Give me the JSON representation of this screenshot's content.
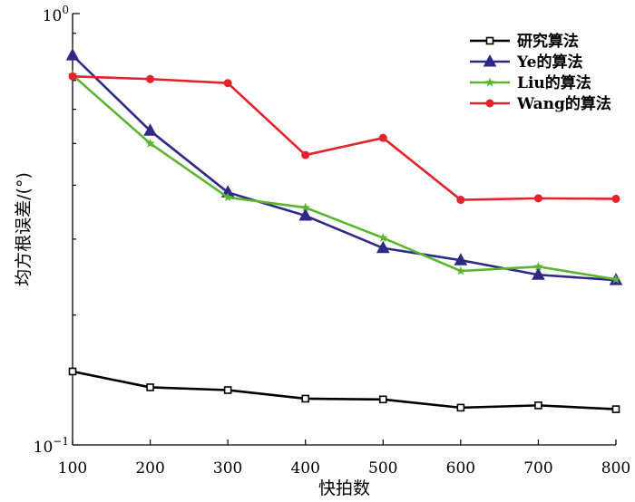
{
  "chart_data": {
    "type": "line",
    "title": "",
    "xlabel": "快拍数",
    "ylabel": "均方根误差/(°)",
    "x": [
      100,
      200,
      300,
      400,
      500,
      600,
      700,
      800
    ],
    "x_ticks": [
      "100",
      "200",
      "300",
      "400",
      "500",
      "600",
      "700",
      "800"
    ],
    "ylim": [
      0.1,
      1
    ],
    "y_scale": "log",
    "y_ticks": [
      {
        "value": 1,
        "base": "10",
        "exp": "0"
      },
      {
        "value": 0.1,
        "base": "10",
        "exp": "−1"
      }
    ],
    "grid": false,
    "legend_position": "top-right",
    "series": [
      {
        "name": "研究算法",
        "color": "#000000",
        "marker": "square-open",
        "values": [
          0.148,
          0.136,
          0.134,
          0.128,
          0.1275,
          0.122,
          0.1235,
          0.121
        ]
      },
      {
        "name": "Ye的算法",
        "color": "#2d2a86",
        "marker": "triangle",
        "values": [
          0.8,
          0.535,
          0.385,
          0.34,
          0.286,
          0.268,
          0.248,
          0.241
        ]
      },
      {
        "name": "Liu的算法",
        "color": "#5cb531",
        "marker": "star",
        "values": [
          0.72,
          0.5,
          0.375,
          0.355,
          0.302,
          0.253,
          0.259,
          0.242
        ]
      },
      {
        "name": "Wang的算法",
        "color": "#e3222b",
        "marker": "circle",
        "values": [
          0.715,
          0.705,
          0.69,
          0.47,
          0.515,
          0.37,
          0.373,
          0.372
        ]
      }
    ]
  }
}
